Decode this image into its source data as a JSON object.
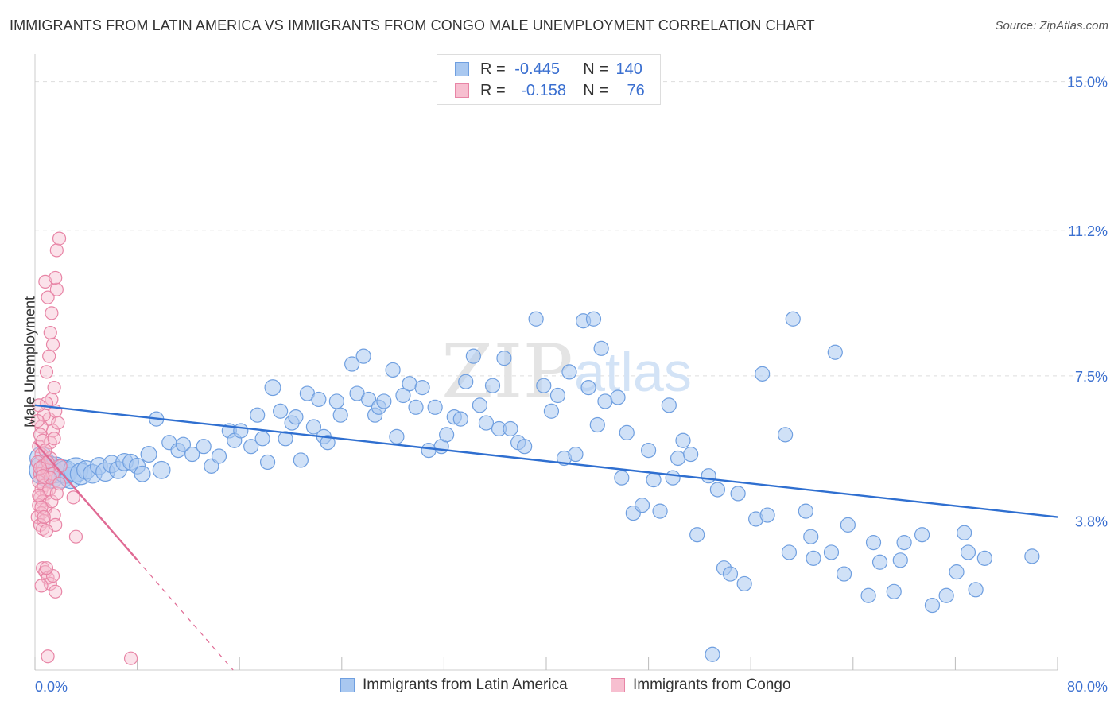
{
  "title": "IMMIGRANTS FROM LATIN AMERICA VS IMMIGRANTS FROM CONGO MALE UNEMPLOYMENT CORRELATION CHART",
  "source": "Source: ZipAtlas.com",
  "watermark": {
    "zip": "ZIP",
    "atlas": "atlas"
  },
  "legend_top": {
    "rows": [
      {
        "r_label": "R = ",
        "r_value": "-0.445",
        "n_label": "N = ",
        "n_value": "140"
      },
      {
        "r_label": "R = ",
        "r_value": "-0.158",
        "n_label": "N = ",
        "n_value": "76"
      }
    ]
  },
  "legend_bottom": {
    "items": [
      "Immigrants from Latin America",
      "Immigrants from Congo"
    ]
  },
  "colors": {
    "blue_fill": "#a9c8f0",
    "blue_stroke": "#6f9fe0",
    "blue_line": "#2f6fd0",
    "pink_fill": "#f7bfd0",
    "pink_stroke": "#e885a6",
    "pink_line": "#e06a94",
    "axis_text": "#3a6fd0",
    "grid": "#dddddd"
  },
  "chart_data": {
    "type": "scatter",
    "title": "IMMIGRANTS FROM LATIN AMERICA VS IMMIGRANTS FROM CONGO MALE UNEMPLOYMENT CORRELATION CHART",
    "xlabel": "",
    "ylabel": "Male Unemployment",
    "xlim": [
      0,
      80
    ],
    "ylim": [
      0,
      15.5
    ],
    "x_tick_labels": [
      "0.0%",
      "80.0%"
    ],
    "y_ticks": [
      3.8,
      7.5,
      11.2,
      15.0
    ],
    "y_tick_labels": [
      "3.8%",
      "7.5%",
      "11.2%",
      "15.0%"
    ],
    "series": [
      {
        "name": "Immigrants from Latin America",
        "r": -0.445,
        "n": 140,
        "trend": {
          "x0": 0,
          "y0": 6.75,
          "x1": 80,
          "y1": 3.9,
          "solid_to": 80
        },
        "points": [
          [
            0.5,
            5.4,
            1.6
          ],
          [
            0.8,
            5.1,
            2.2
          ],
          [
            1.2,
            5.0,
            2.0
          ],
          [
            1.6,
            5.1,
            1.8
          ],
          [
            2.0,
            5.0,
            2.0
          ],
          [
            2.4,
            5.05,
            1.6
          ],
          [
            2.8,
            4.9,
            1.5
          ],
          [
            3.2,
            5.1,
            1.7
          ],
          [
            3.6,
            5.0,
            1.5
          ],
          [
            4.0,
            5.1,
            1.3
          ],
          [
            4.5,
            5.0,
            1.3
          ],
          [
            5.0,
            5.2,
            1.2
          ],
          [
            5.5,
            5.05,
            1.3
          ],
          [
            6.0,
            5.25,
            1.2
          ],
          [
            6.5,
            5.1,
            1.2
          ],
          [
            7.0,
            5.3,
            1.2
          ],
          [
            7.5,
            5.3,
            1.1
          ],
          [
            8.0,
            5.2,
            1.1
          ],
          [
            8.4,
            5.0,
            1.1
          ],
          [
            8.9,
            5.5,
            1.1
          ],
          [
            9.5,
            6.4,
            1.0
          ],
          [
            9.9,
            5.1,
            1.2
          ],
          [
            10.5,
            5.8,
            1.0
          ],
          [
            11.2,
            5.6,
            1.0
          ],
          [
            11.6,
            5.75,
            1.0
          ],
          [
            12.3,
            5.5,
            1.0
          ],
          [
            13.2,
            5.7,
            1.0
          ],
          [
            13.8,
            5.2,
            1.0
          ],
          [
            14.4,
            5.45,
            1.0
          ],
          [
            15.2,
            6.1,
            1.0
          ],
          [
            15.6,
            5.85,
            1.0
          ],
          [
            16.1,
            6.1,
            1.0
          ],
          [
            16.9,
            5.7,
            1.0
          ],
          [
            17.4,
            6.5,
            1.0
          ],
          [
            17.8,
            5.9,
            1.0
          ],
          [
            18.2,
            5.3,
            1.0
          ],
          [
            18.6,
            7.2,
            1.1
          ],
          [
            19.2,
            6.6,
            1.0
          ],
          [
            19.6,
            5.9,
            1.0
          ],
          [
            20.1,
            6.3,
            1.0
          ],
          [
            20.4,
            6.45,
            1.0
          ],
          [
            20.8,
            5.35,
            1.0
          ],
          [
            21.3,
            7.05,
            1.0
          ],
          [
            21.8,
            6.2,
            1.0
          ],
          [
            22.2,
            6.9,
            1.0
          ],
          [
            22.6,
            5.95,
            1.0
          ],
          [
            22.9,
            5.8,
            1.0
          ],
          [
            23.6,
            6.85,
            1.0
          ],
          [
            23.9,
            6.5,
            1.0
          ],
          [
            24.8,
            7.8,
            1.0
          ],
          [
            25.2,
            7.05,
            1.0
          ],
          [
            25.7,
            8.0,
            1.0
          ],
          [
            26.1,
            6.9,
            1.0
          ],
          [
            26.6,
            6.5,
            1.0
          ],
          [
            26.9,
            6.7,
            1.0
          ],
          [
            27.3,
            6.85,
            1.0
          ],
          [
            28.0,
            7.65,
            1.0
          ],
          [
            28.3,
            5.95,
            1.0
          ],
          [
            28.8,
            7.0,
            1.0
          ],
          [
            29.3,
            7.3,
            1.0
          ],
          [
            29.8,
            6.7,
            1.0
          ],
          [
            30.3,
            7.2,
            1.0
          ],
          [
            30.8,
            5.6,
            1.0
          ],
          [
            31.3,
            6.7,
            1.0
          ],
          [
            31.8,
            5.7,
            1.0
          ],
          [
            32.2,
            6.0,
            1.0
          ],
          [
            32.8,
            6.45,
            1.0
          ],
          [
            33.3,
            6.4,
            1.0
          ],
          [
            33.7,
            7.35,
            1.0
          ],
          [
            34.3,
            8.0,
            1.0
          ],
          [
            34.8,
            6.75,
            1.0
          ],
          [
            35.3,
            6.3,
            1.0
          ],
          [
            35.8,
            7.25,
            1.0
          ],
          [
            36.3,
            6.15,
            1.0
          ],
          [
            36.7,
            7.95,
            1.0
          ],
          [
            37.2,
            6.15,
            1.0
          ],
          [
            37.8,
            5.8,
            1.0
          ],
          [
            38.3,
            5.7,
            1.0
          ],
          [
            39.2,
            8.95,
            1.0
          ],
          [
            39.8,
            7.25,
            1.0
          ],
          [
            40.4,
            6.6,
            1.0
          ],
          [
            40.9,
            7.0,
            1.0
          ],
          [
            41.4,
            5.4,
            1.0
          ],
          [
            41.8,
            7.6,
            1.0
          ],
          [
            42.3,
            5.5,
            1.0
          ],
          [
            42.9,
            8.9,
            1.0
          ],
          [
            43.3,
            7.2,
            1.0
          ],
          [
            43.7,
            8.95,
            1.0
          ],
          [
            44.0,
            6.25,
            1.0
          ],
          [
            44.3,
            8.2,
            1.0
          ],
          [
            44.6,
            6.85,
            1.0
          ],
          [
            45.6,
            6.95,
            1.0
          ],
          [
            45.9,
            4.9,
            1.0
          ],
          [
            46.3,
            6.05,
            1.0
          ],
          [
            46.8,
            4.0,
            1.0
          ],
          [
            47.5,
            4.2,
            1.0
          ],
          [
            48.0,
            5.6,
            1.0
          ],
          [
            48.4,
            4.85,
            1.0
          ],
          [
            48.9,
            4.05,
            1.0
          ],
          [
            49.6,
            6.75,
            1.0
          ],
          [
            49.9,
            4.9,
            1.0
          ],
          [
            50.3,
            5.4,
            1.0
          ],
          [
            50.7,
            5.85,
            1.0
          ],
          [
            51.3,
            5.5,
            1.0
          ],
          [
            51.8,
            3.45,
            1.0
          ],
          [
            52.7,
            4.95,
            1.0
          ],
          [
            53.4,
            4.6,
            1.0
          ],
          [
            53.9,
            2.6,
            1.0
          ],
          [
            54.4,
            2.45,
            1.0
          ],
          [
            55.0,
            4.5,
            1.0
          ],
          [
            55.5,
            2.2,
            1.0
          ],
          [
            56.4,
            3.85,
            1.0
          ],
          [
            56.9,
            7.55,
            1.0
          ],
          [
            57.3,
            3.95,
            1.0
          ],
          [
            58.7,
            6.0,
            1.0
          ],
          [
            59.0,
            3.0,
            1.0
          ],
          [
            59.3,
            8.95,
            1.0
          ],
          [
            60.3,
            4.05,
            1.0
          ],
          [
            60.7,
            3.4,
            1.0
          ],
          [
            60.9,
            2.85,
            1.0
          ],
          [
            62.3,
            3.0,
            1.0
          ],
          [
            62.6,
            8.1,
            1.0
          ],
          [
            63.3,
            2.45,
            1.0
          ],
          [
            63.6,
            3.7,
            1.0
          ],
          [
            65.2,
            1.9,
            1.0
          ],
          [
            65.6,
            3.25,
            1.0
          ],
          [
            66.1,
            2.75,
            1.0
          ],
          [
            67.2,
            2.0,
            1.0
          ],
          [
            67.7,
            2.8,
            1.0
          ],
          [
            68.0,
            3.25,
            1.0
          ],
          [
            69.4,
            3.45,
            1.0
          ],
          [
            70.2,
            1.65,
            1.0
          ],
          [
            71.3,
            1.9,
            1.0
          ],
          [
            72.1,
            2.5,
            1.0
          ],
          [
            72.7,
            3.5,
            1.0
          ],
          [
            73.0,
            3.0,
            1.0
          ],
          [
            73.6,
            2.05,
            1.0
          ],
          [
            74.3,
            2.85,
            1.0
          ],
          [
            78.0,
            2.9,
            1.0
          ],
          [
            53.0,
            0.4,
            1.0
          ]
        ]
      },
      {
        "name": "Immigrants from Congo",
        "r": -0.158,
        "n": 76,
        "trend": {
          "x0": 0,
          "y0": 5.8,
          "x1": 15.5,
          "y1": 0.0,
          "solid_to": 8.0
        },
        "points": [
          [
            0.3,
            5.7
          ],
          [
            0.5,
            5.5
          ],
          [
            0.2,
            5.3
          ],
          [
            0.6,
            5.2
          ],
          [
            0.4,
            5.0
          ],
          [
            0.8,
            4.9
          ],
          [
            0.3,
            4.8
          ],
          [
            0.7,
            4.7
          ],
          [
            0.5,
            4.6
          ],
          [
            0.9,
            4.5
          ],
          [
            0.4,
            4.4
          ],
          [
            0.6,
            4.3
          ],
          [
            0.3,
            4.2
          ],
          [
            0.8,
            4.1
          ],
          [
            0.5,
            4.0
          ],
          [
            0.2,
            3.9
          ],
          [
            0.7,
            3.8
          ],
          [
            0.4,
            3.7
          ],
          [
            0.6,
            3.6
          ],
          [
            1.0,
            5.1
          ],
          [
            1.2,
            5.4
          ],
          [
            1.4,
            5.0
          ],
          [
            1.1,
            4.6
          ],
          [
            1.3,
            4.3
          ],
          [
            1.5,
            3.95
          ],
          [
            1.6,
            3.7
          ],
          [
            1.2,
            5.8
          ],
          [
            1.4,
            6.1
          ],
          [
            1.1,
            6.4
          ],
          [
            1.6,
            6.6
          ],
          [
            1.3,
            6.9
          ],
          [
            1.5,
            7.2
          ],
          [
            0.9,
            7.6
          ],
          [
            1.1,
            8.0
          ],
          [
            1.4,
            8.3
          ],
          [
            1.2,
            8.6
          ],
          [
            1.3,
            9.1
          ],
          [
            1.0,
            9.5
          ],
          [
            1.7,
            9.7
          ],
          [
            0.8,
            9.9
          ],
          [
            1.6,
            10.0
          ],
          [
            1.7,
            10.7
          ],
          [
            1.9,
            11.0
          ],
          [
            0.5,
            6.2
          ],
          [
            0.7,
            6.5
          ],
          [
            0.9,
            6.8
          ],
          [
            0.4,
            6.0
          ],
          [
            0.6,
            5.85
          ],
          [
            0.8,
            5.6
          ],
          [
            1.0,
            5.3
          ],
          [
            1.8,
            6.3
          ],
          [
            1.5,
            5.9
          ],
          [
            1.7,
            4.5
          ],
          [
            1.2,
            4.9
          ],
          [
            0.3,
            4.45
          ],
          [
            0.5,
            4.15
          ],
          [
            0.7,
            3.9
          ],
          [
            0.9,
            3.55
          ],
          [
            0.6,
            2.6
          ],
          [
            0.8,
            2.5
          ],
          [
            1.0,
            2.35
          ],
          [
            1.2,
            2.2
          ],
          [
            0.5,
            2.15
          ],
          [
            1.4,
            2.4
          ],
          [
            1.6,
            2.0
          ],
          [
            0.9,
            2.6
          ],
          [
            0.4,
            5.15
          ],
          [
            0.6,
            4.95
          ],
          [
            1.9,
            4.75
          ],
          [
            2.0,
            5.2
          ],
          [
            3.0,
            4.4
          ],
          [
            3.2,
            3.4
          ],
          [
            1.0,
            0.35
          ],
          [
            7.5,
            0.3
          ],
          [
            0.3,
            6.75
          ],
          [
            0.2,
            6.35
          ]
        ]
      }
    ]
  }
}
